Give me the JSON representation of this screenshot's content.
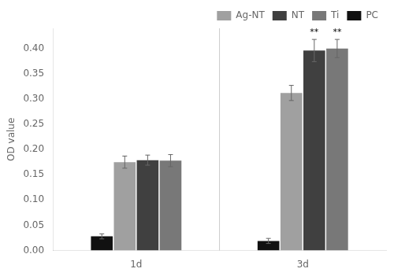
{
  "chart_data": {
    "type": "bar",
    "categories": [
      "1d",
      "3d"
    ],
    "ylabel": "OD value",
    "ylim": [
      0,
      0.44
    ],
    "yticks": [
      {
        "value": 0.0,
        "label": "0.00"
      },
      0.05,
      {
        "value": 0.1,
        "label": "0.10"
      },
      0.15,
      {
        "value": 0.2,
        "label": "0.20"
      },
      0.25,
      {
        "value": 0.3,
        "label": "0.30"
      },
      0.35,
      {
        "value": 0.4,
        "label": "0.40"
      }
    ],
    "grid": false,
    "legend": "upper right",
    "legend_labels": [
      "Ag-NT",
      "NT",
      "Ti",
      "PC"
    ],
    "series": [
      {
        "name": "PC",
        "color": "#111111",
        "values": [
          0.028,
          0.019
        ],
        "errors": [
          0.005,
          0.005
        ],
        "annotations": [
          null,
          null
        ]
      },
      {
        "name": "Ag-NT",
        "color": "#a0a0a0",
        "values": [
          0.175,
          0.312
        ],
        "errors": [
          0.012,
          0.015
        ],
        "annotations": [
          null,
          null
        ]
      },
      {
        "name": "NT",
        "color": "#404040",
        "values": [
          0.179,
          0.396
        ],
        "errors": [
          0.01,
          0.022
        ],
        "annotations": [
          null,
          "**"
        ]
      },
      {
        "name": "Ti",
        "color": "#787878",
        "values": [
          0.178,
          0.4
        ],
        "errors": [
          0.012,
          0.018
        ],
        "annotations": [
          null,
          "**"
        ]
      }
    ]
  }
}
